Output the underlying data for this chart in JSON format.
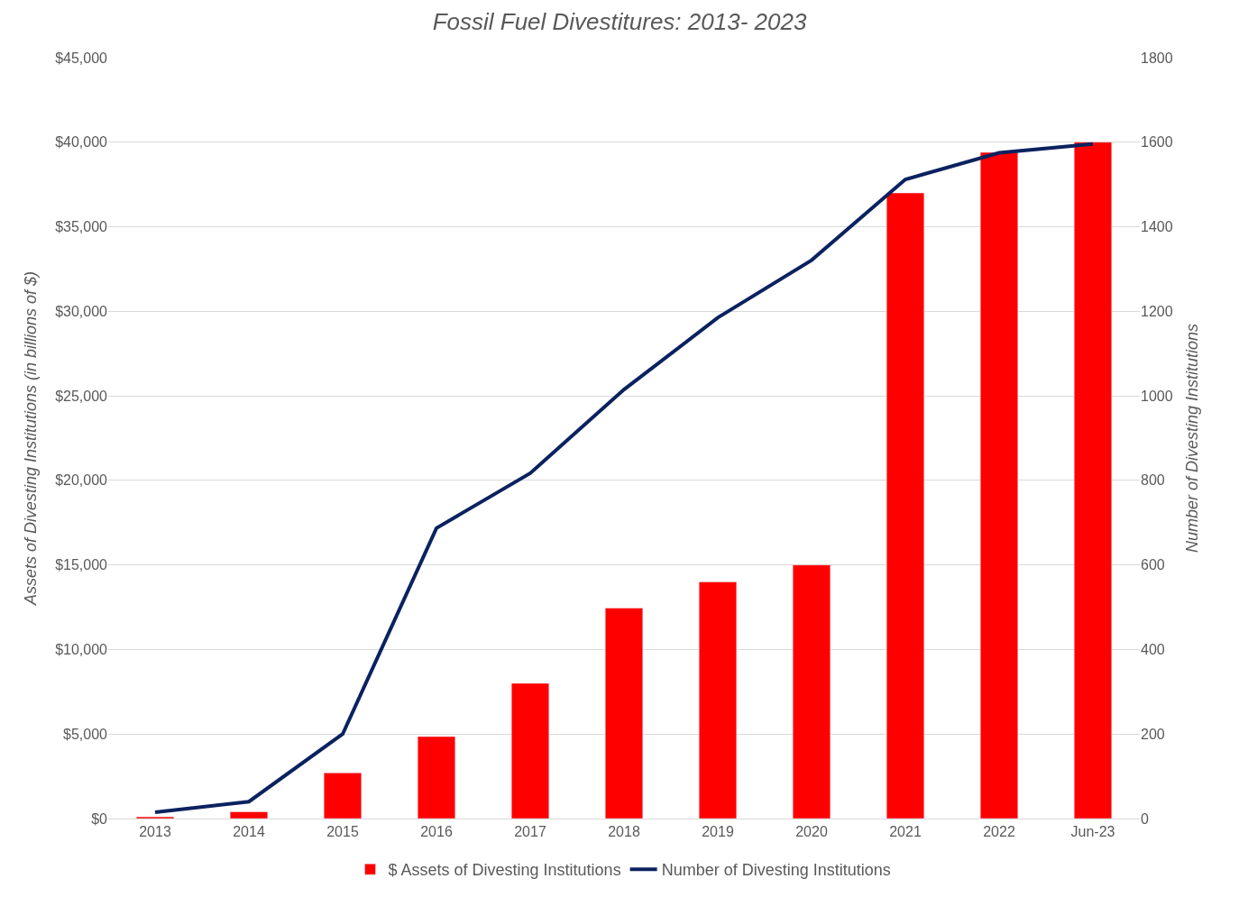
{
  "chart_data": {
    "type": "bar",
    "title": "Fossil Fuel Divestitures: 2013- 2023",
    "ylabel": "Assets of Divesting Institutions (in billions of $)",
    "y2label": "Number of Divesting Institutions",
    "categories": [
      "2013",
      "2014",
      "2015",
      "2016",
      "2017",
      "2018",
      "2019",
      "2020",
      "2021",
      "2022",
      "Jun-23"
    ],
    "series": [
      {
        "name": "$ Assets of Divesting Institutions",
        "color": "#ff0000",
        "values": [
          100,
          400,
          2700,
          4850,
          8000,
          12450,
          14000,
          15000,
          37000,
          39400,
          40000
        ]
      },
      {
        "name": "Number of Divesting Institutions",
        "type": "line",
        "axis": "y2",
        "color": "#0b2260",
        "values": [
          15,
          40,
          200,
          687,
          817,
          1015,
          1185,
          1321,
          1512,
          1575,
          1596
        ]
      }
    ],
    "ylim": [
      0,
      45000
    ],
    "yticks": [
      {
        "value": 0,
        "label": "$0"
      },
      {
        "value": 5000,
        "label": "$5,000"
      },
      {
        "value": 10000,
        "label": "$10,000"
      },
      {
        "value": 15000,
        "label": "$15,000"
      },
      {
        "value": 20000,
        "label": "$20,000"
      },
      {
        "value": 25000,
        "label": "$25,000"
      },
      {
        "value": 30000,
        "label": "$30,000"
      },
      {
        "value": 35000,
        "label": "$35,000"
      },
      {
        "value": 40000,
        "label": "$40,000"
      },
      {
        "value": 45000,
        "label": "$45,000"
      }
    ],
    "y2lim": [
      0,
      1800
    ],
    "y2ticks": [
      0,
      200,
      400,
      600,
      800,
      1000,
      1200,
      1400,
      1600,
      1800
    ],
    "grid": "y",
    "legend": "bottom",
    "marker": "none",
    "line_style": "solid"
  }
}
